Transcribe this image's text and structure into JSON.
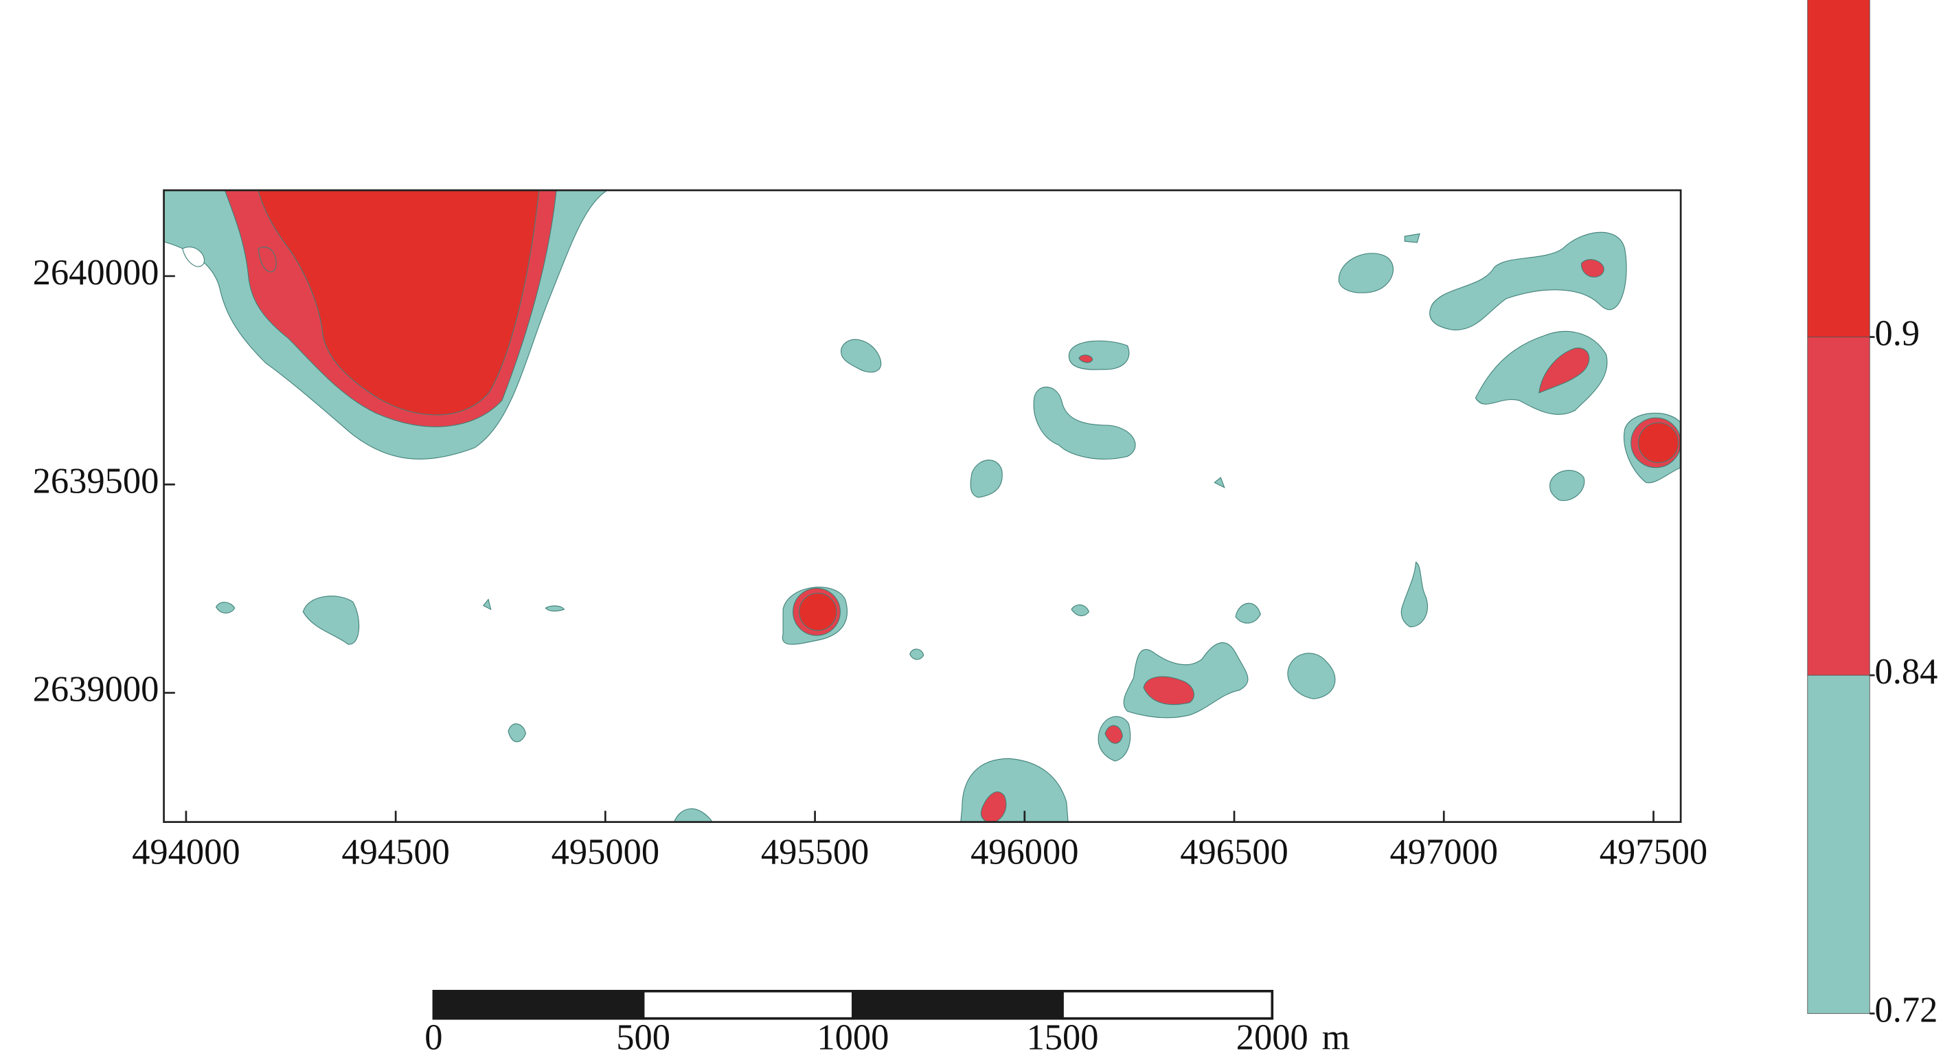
{
  "map": {
    "xlim": [
      493947,
      497565
    ],
    "ylim": [
      2638690,
      2640206
    ],
    "xticks": [
      494000,
      494500,
      495000,
      495500,
      496000,
      496500,
      497000,
      497500
    ],
    "yticks": [
      2639000,
      2639500,
      2640000
    ]
  },
  "colorbar": {
    "levels": [
      0.72,
      0.84,
      0.9
    ],
    "colors": [
      "#8cc8bf",
      "#e2424d",
      "#e22f2a"
    ]
  },
  "scale_bar": {
    "ticks": [
      0,
      500,
      1000,
      1500,
      2000
    ],
    "unit": "m"
  }
}
